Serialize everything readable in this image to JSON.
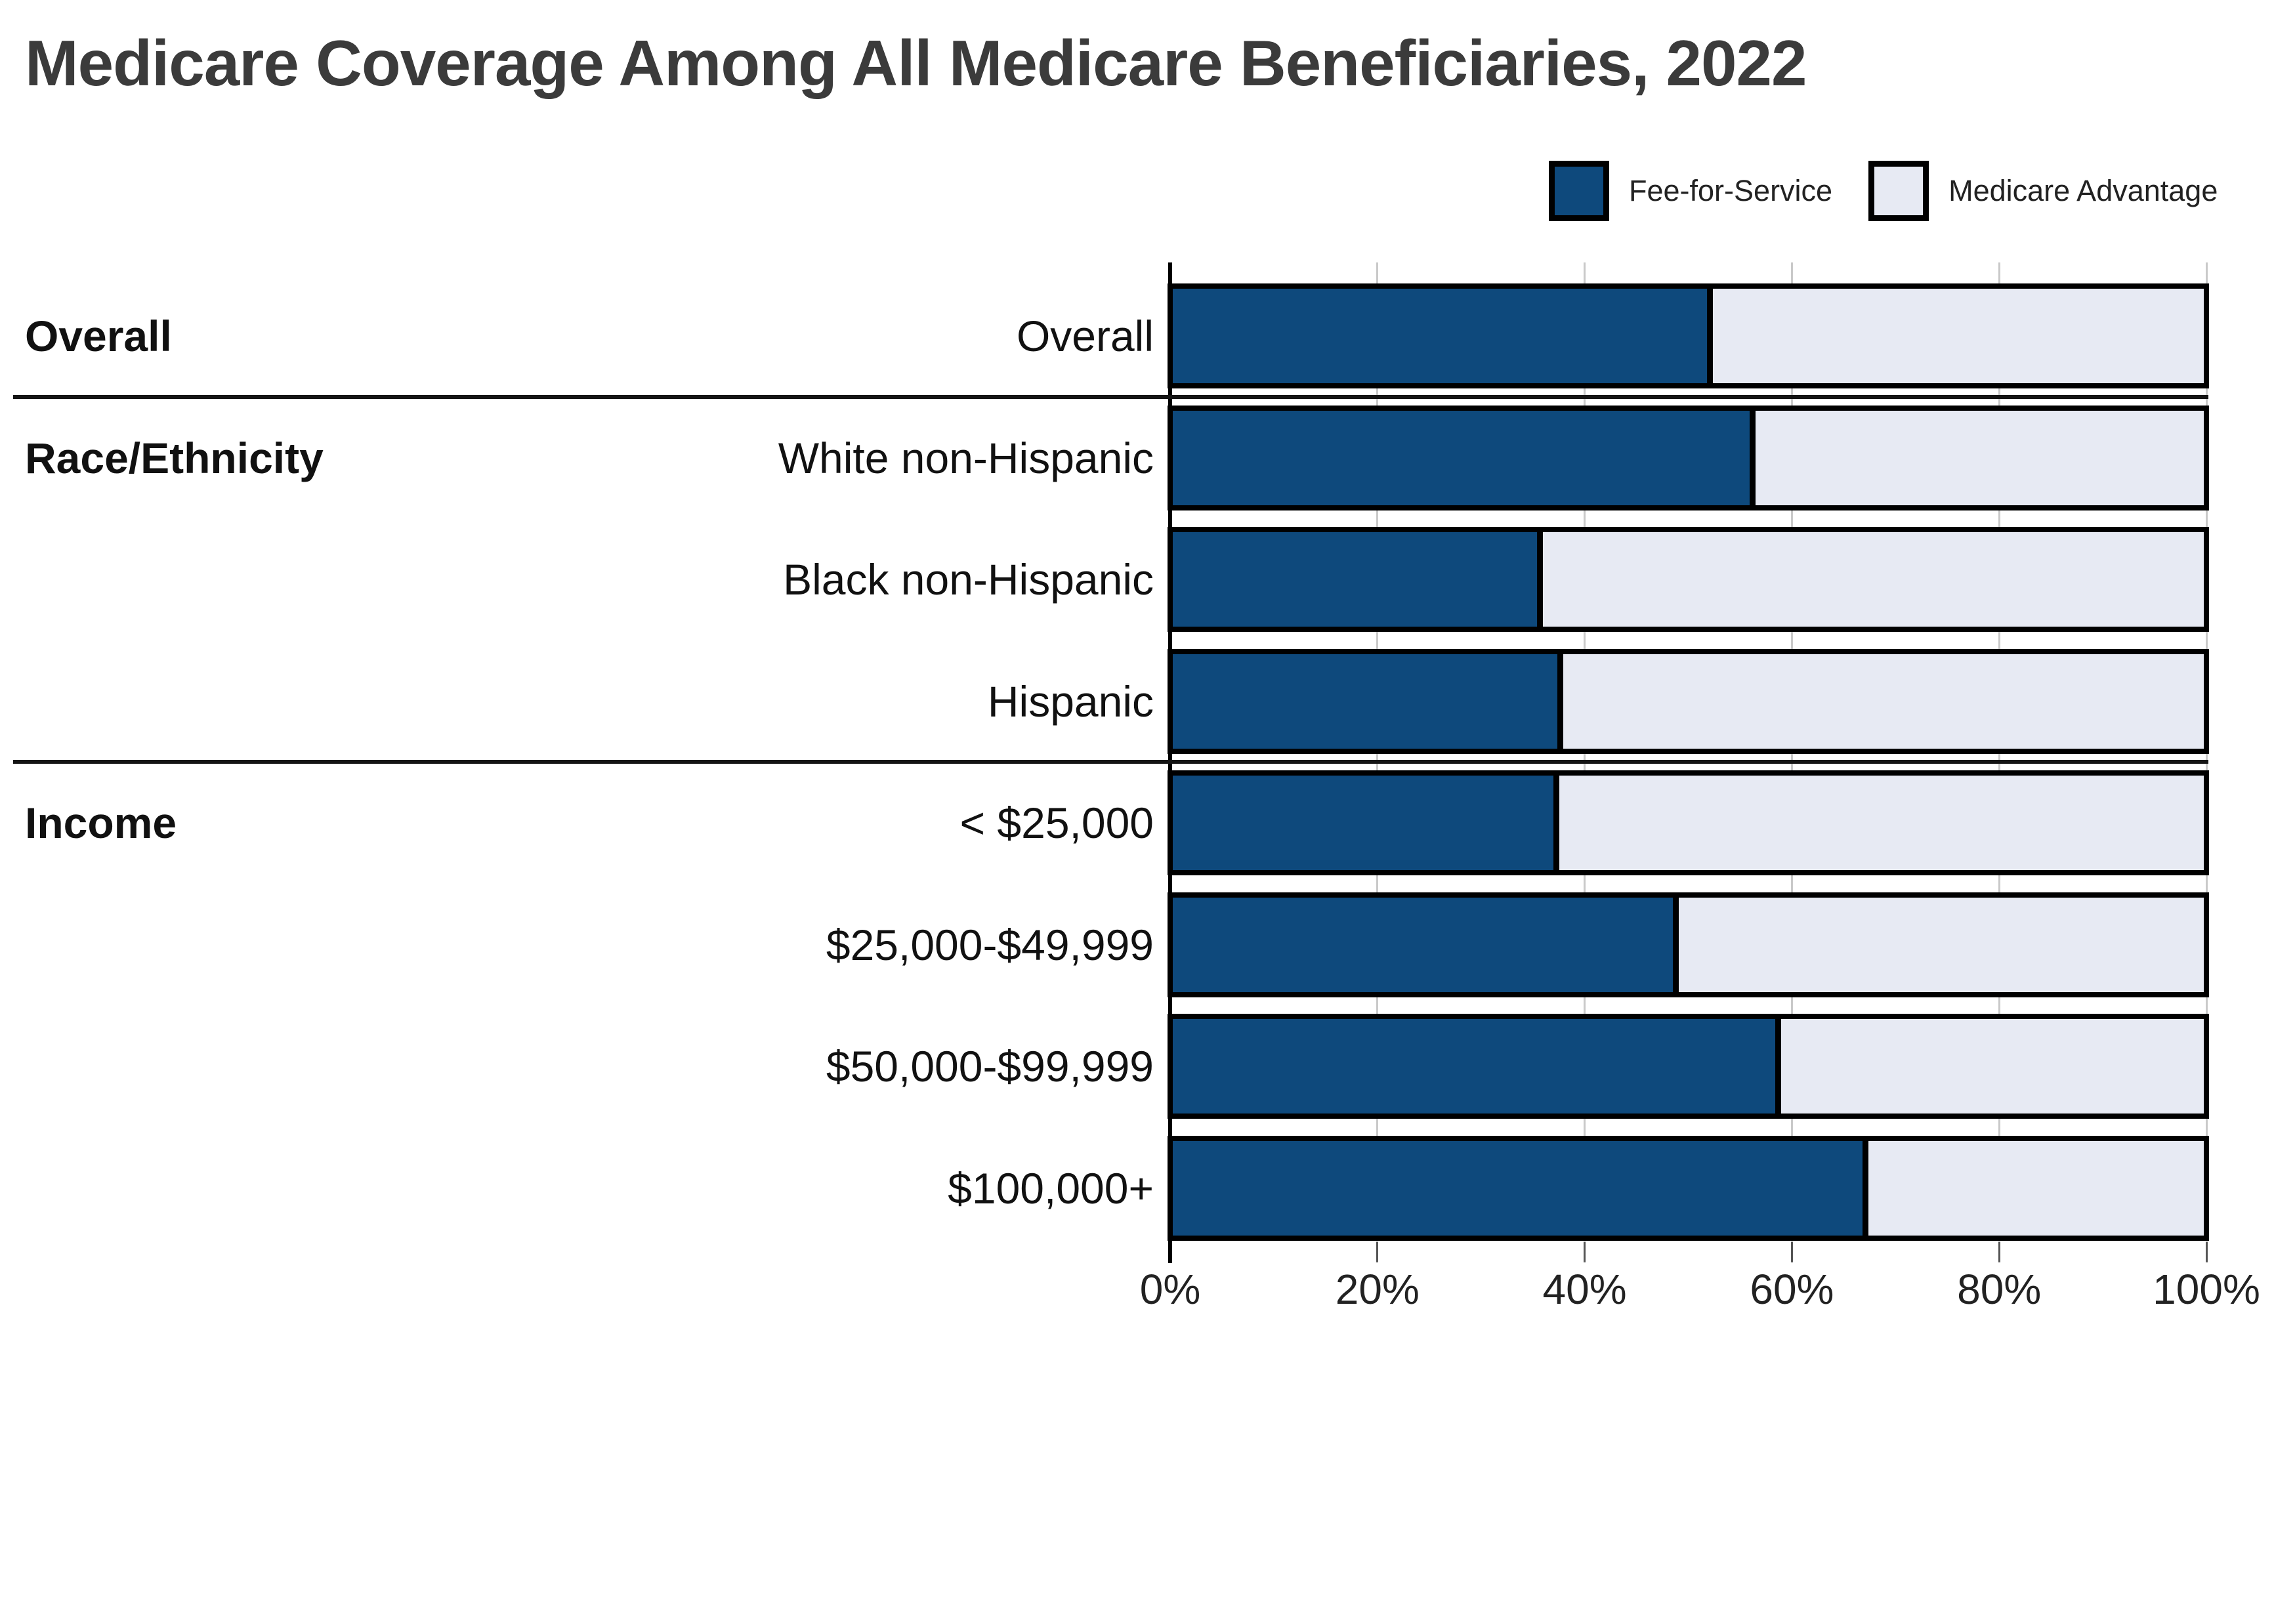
{
  "title": "Medicare Coverage Among All Medicare Beneficiaries, 2022",
  "legend": {
    "items": [
      {
        "label": "Fee-for-Service",
        "color": "#0e497c"
      },
      {
        "label": "Medicare Advantage",
        "color": "#e7eaf3"
      }
    ]
  },
  "colors": {
    "fee_for_service": "#0e497c",
    "medicare_advantage": "#e7eaf3",
    "bar_border": "#000000",
    "gridline": "#c9c9c9",
    "separator": "#141414",
    "title_text": "#3b3b3b",
    "label_text": "#111111"
  },
  "chart_data": {
    "type": "bar",
    "orientation": "horizontal",
    "stacked": true,
    "title": "Medicare Coverage Among All Medicare Beneficiaries, 2022",
    "xlabel": "",
    "ylabel": "",
    "xlim": [
      0,
      100
    ],
    "x_ticks": [
      "0%",
      "20%",
      "40%",
      "60%",
      "80%",
      "100%"
    ],
    "grid": true,
    "legend_position": "top-right",
    "categories": [
      "Overall",
      "White non-Hispanic",
      "Black non-Hispanic",
      "Hispanic",
      "< $25,000",
      "$25,000-$49,999",
      "$50,000-$99,999",
      "$100,000+"
    ],
    "groups": [
      {
        "label": "Overall",
        "start": 0,
        "end": 0
      },
      {
        "label": "Race/Ethnicity",
        "start": 1,
        "end": 3
      },
      {
        "label": "Income",
        "start": 4,
        "end": 7
      }
    ],
    "series": [
      {
        "name": "Fee-for-Service",
        "color": "#0e497c",
        "values": [
          52.4,
          56.5,
          35.9,
          37.9,
          37.5,
          49.1,
          59.0,
          67.5
        ]
      },
      {
        "name": "Medicare Advantage",
        "color": "#e7eaf3",
        "values": [
          47.6,
          43.5,
          64.1,
          62.1,
          62.5,
          50.9,
          41.0,
          32.5
        ]
      }
    ]
  }
}
